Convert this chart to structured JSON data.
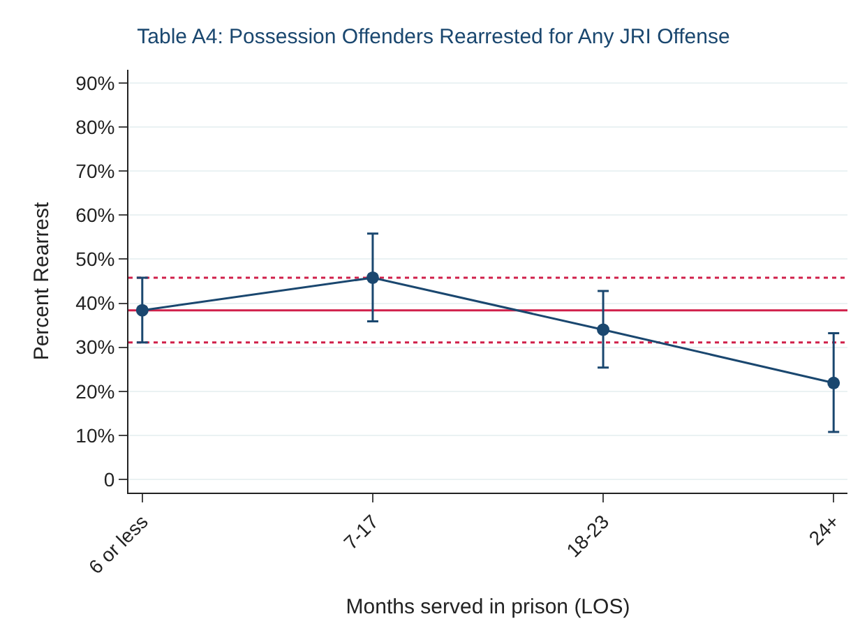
{
  "chart_data": {
    "type": "line",
    "title": "Table A4: Possession Offenders Rearrested for Any JRI Offense",
    "xlabel": "Months served in prison (LOS)",
    "ylabel": "Percent Rearrest",
    "categories": [
      "6 or less",
      "7-17",
      "18-23",
      "24+"
    ],
    "series": [
      {
        "color": "#1a476f",
        "values": [
          38.4,
          45.8,
          34.0,
          21.9
        ],
        "errors": [
          [
            31.1,
            45.8
          ],
          [
            35.9,
            55.8
          ],
          [
            25.4,
            42.8
          ],
          [
            10.8,
            33.2
          ]
        ]
      }
    ],
    "ylim": [
      -3,
      93
    ],
    "yticks": [
      0,
      {
        "value": 10,
        "label": "10%"
      },
      {
        "value": 20,
        "label": "20%"
      },
      {
        "value": 30,
        "label": "30%"
      },
      {
        "value": 40,
        "label": "40%"
      },
      {
        "value": 50,
        "label": "50%"
      },
      {
        "value": 60,
        "label": "60%"
      },
      {
        "value": 70,
        "label": "70%"
      },
      {
        "value": 80,
        "label": "80%"
      },
      {
        "value": 90,
        "label": "90%"
      }
    ],
    "ref_lines": [
      {
        "axis": "y",
        "value": 38.4,
        "color": "#d0204a",
        "line_style": "solid"
      },
      {
        "axis": "y",
        "value": 45.8,
        "color": "#d0204a",
        "line_style": "dotted"
      },
      {
        "axis": "y",
        "value": 31.1,
        "color": "#d0204a",
        "line_style": "dotted"
      }
    ],
    "grid": "y",
    "marker": "circle",
    "line_style": "solid",
    "legend": false
  }
}
